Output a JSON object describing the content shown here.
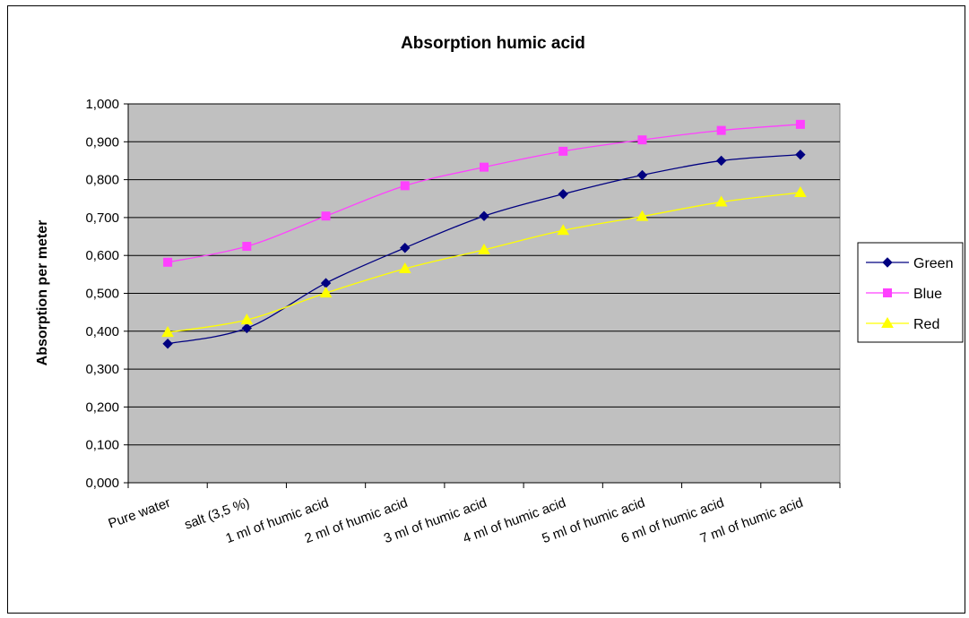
{
  "chart_data": {
    "type": "line",
    "title": "Absorption humic acid",
    "xlabel": "",
    "ylabel": "Absorption per meter",
    "ylim": [
      0,
      1.0
    ],
    "ytick_step": 0.1,
    "yticks": [
      "0,000",
      "0,100",
      "0,200",
      "0,300",
      "0,400",
      "0,500",
      "0,600",
      "0,700",
      "0,800",
      "0,900",
      "1,000"
    ],
    "categories": [
      "Pure water",
      "salt (3,5 %)",
      "1 ml of humic acid",
      "2 ml of humic acid",
      "3 ml of humic acid",
      "4 ml of humic acid",
      "5 ml of humic acid",
      "6 ml of humic acid",
      "7 ml of humic acid"
    ],
    "grid": true,
    "legend_position": "right",
    "plot_background": "#c0c0c0",
    "series": [
      {
        "name": "Green",
        "color": "#000080",
        "marker": "diamond",
        "values": [
          0.367,
          0.408,
          0.527,
          0.62,
          0.704,
          0.762,
          0.812,
          0.85,
          0.866
        ]
      },
      {
        "name": "Blue",
        "color": "#ff40ff",
        "marker": "square",
        "values": [
          0.582,
          0.624,
          0.704,
          0.784,
          0.833,
          0.875,
          0.905,
          0.93,
          0.946
        ]
      },
      {
        "name": "Red",
        "color": "#ffff00",
        "marker": "triangle",
        "values": [
          0.397,
          0.43,
          0.501,
          0.565,
          0.615,
          0.666,
          0.703,
          0.741,
          0.766
        ]
      }
    ]
  }
}
